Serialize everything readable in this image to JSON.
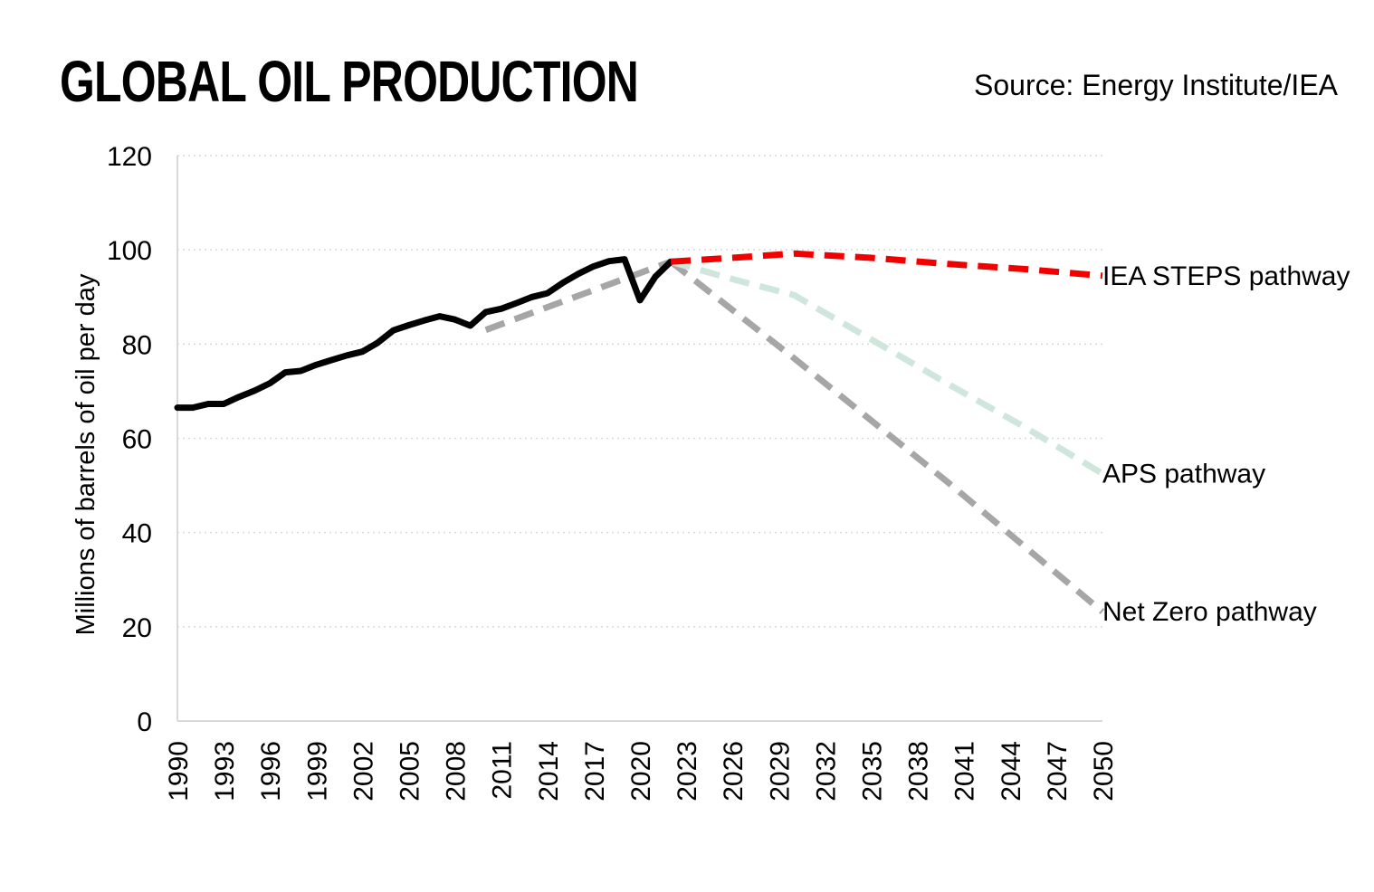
{
  "header": {
    "title": "GLOBAL OIL PRODUCTION",
    "source": "Source: Energy Institute/IEA"
  },
  "chart_data": {
    "type": "line",
    "title": "GLOBAL OIL PRODUCTION",
    "source": "Source: Energy Institute/IEA",
    "ylabel": "Millions of barrels of oil per day",
    "xlabel": "",
    "xlim": [
      1990,
      2050
    ],
    "ylim": [
      0,
      120
    ],
    "yticks": [
      0,
      20,
      40,
      60,
      80,
      100,
      120
    ],
    "xticks": [
      1990,
      1993,
      1996,
      1999,
      2002,
      2005,
      2008,
      2011,
      2014,
      2017,
      2020,
      2023,
      2026,
      2029,
      2032,
      2035,
      2038,
      2041,
      2044,
      2047,
      2050
    ],
    "grid": true,
    "series": [
      {
        "key": "historical",
        "name": "",
        "color": "#000000",
        "style": "solid",
        "x": [
          1990,
          1991,
          1992,
          1993,
          1994,
          1995,
          1996,
          1997,
          1998,
          1999,
          2000,
          2001,
          2002,
          2003,
          2004,
          2005,
          2006,
          2007,
          2008,
          2009,
          2010,
          2011,
          2012,
          2013,
          2014,
          2015,
          2016,
          2017,
          2018,
          2019,
          2020,
          2021,
          2022
        ],
        "y": [
          66.5,
          66.5,
          67.3,
          67.3,
          68.8,
          70.1,
          71.7,
          74.0,
          74.3,
          75.6,
          76.6,
          77.6,
          78.4,
          80.3,
          82.9,
          84.0,
          85.0,
          85.9,
          85.2,
          83.9,
          86.8,
          87.5,
          88.7,
          90.0,
          90.8,
          93.0,
          94.9,
          96.5,
          97.6,
          98.0,
          89.3,
          94.3,
          97.5
        ]
      },
      {
        "key": "steps",
        "name": "IEA STEPS pathway",
        "color": "#f20000",
        "style": "dashed",
        "x": [
          2022,
          2026,
          2030,
          2035,
          2040,
          2045,
          2050
        ],
        "y": [
          97.5,
          98.3,
          99.2,
          98.3,
          97.0,
          95.9,
          94.5
        ]
      },
      {
        "key": "aps",
        "name": "APS pathway",
        "color": "#cfe6dd",
        "style": "dashed",
        "x": [
          2022,
          2026,
          2030,
          2035,
          2040,
          2045,
          2050
        ],
        "y": [
          97.5,
          93.8,
          90.4,
          81.0,
          71.5,
          62.3,
          52.5
        ]
      },
      {
        "key": "netzero",
        "name": "Net Zero pathway",
        "color": "#a6a6a6",
        "style": "dashed",
        "x": [
          2022,
          2030,
          2040,
          2050
        ],
        "y": [
          97.5,
          77.0,
          50.6,
          23.2
        ]
      },
      {
        "key": "netzero-back",
        "name": "",
        "color": "#a6a6a6",
        "style": "dashed",
        "x": [
          2010,
          2022
        ],
        "y": [
          83.0,
          97.5
        ]
      }
    ]
  }
}
